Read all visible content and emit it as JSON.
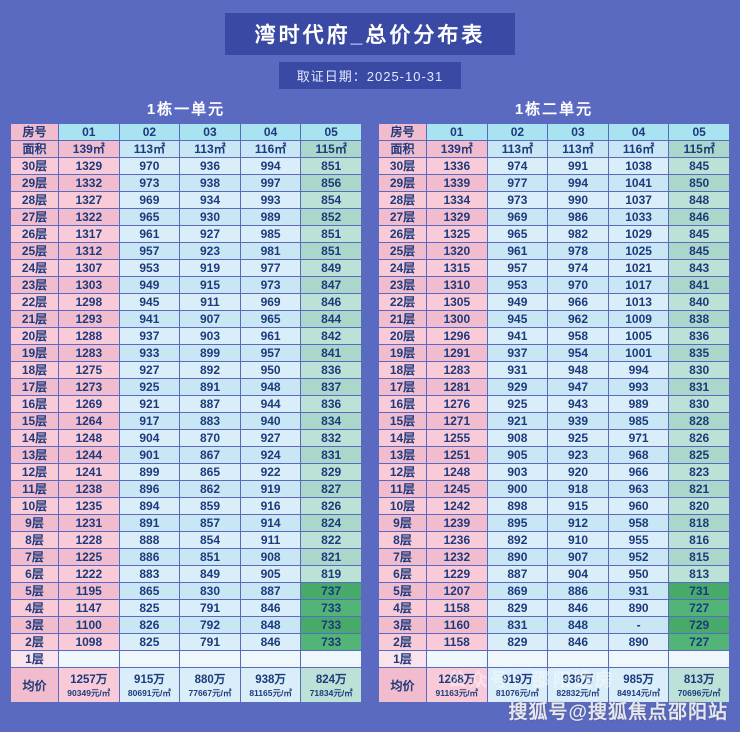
{
  "page": {
    "title": "湾时代府_总价分布表",
    "date_label": "取证日期：2025-10-31",
    "watermark": "搜狐号@搜狐焦点邵阳站",
    "watermark_faint": "公众号：邵阳选房",
    "colors": {
      "background": "#5b6ac1",
      "banner": "#3a49a4",
      "header_cell": "#a9e2f1",
      "pink_light": "#f9cbd8",
      "pink_dark": "#f1bccd",
      "blue_light": "#d9eef9",
      "blue_dark": "#c8e6f4",
      "teal_light": "#bce1d6",
      "teal_dark": "#abd7ca",
      "green_light": "#52b476",
      "green_dark": "#47aa6b",
      "pale": "#eef7fb",
      "pale_pink": "#fbe3ec",
      "text": "#1d3a7c"
    }
  },
  "chart_data": [
    {
      "type": "table",
      "title": "1栋一单元",
      "corner_label": "房号",
      "area_label": "面积",
      "room_numbers": [
        "01",
        "02",
        "03",
        "04",
        "05"
      ],
      "areas": [
        "139㎡",
        "113㎡",
        "113㎡",
        "116㎡",
        "115㎡"
      ],
      "floors": [
        "30层",
        "29层",
        "28层",
        "27层",
        "26层",
        "25层",
        "24层",
        "23层",
        "22层",
        "21层",
        "20层",
        "19层",
        "18层",
        "17层",
        "16层",
        "15层",
        "14层",
        "13层",
        "12层",
        "11层",
        "10层",
        "9层",
        "8层",
        "7层",
        "6层",
        "5层",
        "4层",
        "3层",
        "2层",
        "1层"
      ],
      "green_floors": [
        "5层",
        "4层",
        "3层",
        "2层"
      ],
      "prices": [
        [
          "1329",
          "970",
          "936",
          "994",
          "851"
        ],
        [
          "1332",
          "973",
          "938",
          "997",
          "856"
        ],
        [
          "1327",
          "969",
          "934",
          "993",
          "854"
        ],
        [
          "1322",
          "965",
          "930",
          "989",
          "852"
        ],
        [
          "1317",
          "961",
          "927",
          "985",
          "851"
        ],
        [
          "1312",
          "957",
          "923",
          "981",
          "851"
        ],
        [
          "1307",
          "953",
          "919",
          "977",
          "849"
        ],
        [
          "1303",
          "949",
          "915",
          "973",
          "847"
        ],
        [
          "1298",
          "945",
          "911",
          "969",
          "846"
        ],
        [
          "1293",
          "941",
          "907",
          "965",
          "844"
        ],
        [
          "1288",
          "937",
          "903",
          "961",
          "842"
        ],
        [
          "1283",
          "933",
          "899",
          "957",
          "841"
        ],
        [
          "1275",
          "927",
          "892",
          "950",
          "836"
        ],
        [
          "1273",
          "925",
          "891",
          "948",
          "837"
        ],
        [
          "1269",
          "921",
          "887",
          "944",
          "836"
        ],
        [
          "1264",
          "917",
          "883",
          "940",
          "834"
        ],
        [
          "1248",
          "904",
          "870",
          "927",
          "832"
        ],
        [
          "1244",
          "901",
          "867",
          "924",
          "831"
        ],
        [
          "1241",
          "899",
          "865",
          "922",
          "829"
        ],
        [
          "1238",
          "896",
          "862",
          "919",
          "827"
        ],
        [
          "1235",
          "894",
          "859",
          "916",
          "826"
        ],
        [
          "1231",
          "891",
          "857",
          "914",
          "824"
        ],
        [
          "1228",
          "888",
          "854",
          "911",
          "822"
        ],
        [
          "1225",
          "886",
          "851",
          "908",
          "821"
        ],
        [
          "1222",
          "883",
          "849",
          "905",
          "819"
        ],
        [
          "1195",
          "865",
          "830",
          "887",
          "737"
        ],
        [
          "1147",
          "825",
          "791",
          "846",
          "733"
        ],
        [
          "1100",
          "826",
          "792",
          "848",
          "733"
        ],
        [
          "1098",
          "825",
          "791",
          "846",
          "733"
        ],
        [
          "",
          "",
          "",
          "",
          ""
        ]
      ],
      "avg_label": "均价",
      "avg_total": [
        "1257万",
        "915万",
        "880万",
        "938万",
        "824万"
      ],
      "avg_unit": [
        "90349元/㎡",
        "80691元/㎡",
        "77667元/㎡",
        "81165元/㎡",
        "71834元/㎡"
      ]
    },
    {
      "type": "table",
      "title": "1栋二单元",
      "corner_label": "房号",
      "area_label": "面积",
      "room_numbers": [
        "01",
        "02",
        "03",
        "04",
        "05"
      ],
      "areas": [
        "139㎡",
        "113㎡",
        "113㎡",
        "116㎡",
        "115㎡"
      ],
      "floors": [
        "30层",
        "29层",
        "28层",
        "27层",
        "26层",
        "25层",
        "24层",
        "23层",
        "22层",
        "21层",
        "20层",
        "19层",
        "18层",
        "17层",
        "16层",
        "15层",
        "14层",
        "13层",
        "12层",
        "11层",
        "10层",
        "9层",
        "8层",
        "7层",
        "6层",
        "5层",
        "4层",
        "3层",
        "2层",
        "1层"
      ],
      "green_floors": [
        "5层",
        "4层",
        "3层",
        "2层"
      ],
      "prices": [
        [
          "1336",
          "974",
          "991",
          "1038",
          "845"
        ],
        [
          "1339",
          "977",
          "994",
          "1041",
          "850"
        ],
        [
          "1334",
          "973",
          "990",
          "1037",
          "848"
        ],
        [
          "1329",
          "969",
          "986",
          "1033",
          "846"
        ],
        [
          "1325",
          "965",
          "982",
          "1029",
          "845"
        ],
        [
          "1320",
          "961",
          "978",
          "1025",
          "845"
        ],
        [
          "1315",
          "957",
          "974",
          "1021",
          "843"
        ],
        [
          "1310",
          "953",
          "970",
          "1017",
          "841"
        ],
        [
          "1305",
          "949",
          "966",
          "1013",
          "840"
        ],
        [
          "1300",
          "945",
          "962",
          "1009",
          "838"
        ],
        [
          "1296",
          "941",
          "958",
          "1005",
          "836"
        ],
        [
          "1291",
          "937",
          "954",
          "1001",
          "835"
        ],
        [
          "1283",
          "931",
          "948",
          "994",
          "830"
        ],
        [
          "1281",
          "929",
          "947",
          "993",
          "831"
        ],
        [
          "1276",
          "925",
          "943",
          "989",
          "830"
        ],
        [
          "1271",
          "921",
          "939",
          "985",
          "828"
        ],
        [
          "1255",
          "908",
          "925",
          "971",
          "826"
        ],
        [
          "1251",
          "905",
          "923",
          "968",
          "825"
        ],
        [
          "1248",
          "903",
          "920",
          "966",
          "823"
        ],
        [
          "1245",
          "900",
          "918",
          "963",
          "821"
        ],
        [
          "1242",
          "898",
          "915",
          "960",
          "820"
        ],
        [
          "1239",
          "895",
          "912",
          "958",
          "818"
        ],
        [
          "1236",
          "892",
          "910",
          "955",
          "816"
        ],
        [
          "1232",
          "890",
          "907",
          "952",
          "815"
        ],
        [
          "1229",
          "887",
          "904",
          "950",
          "813"
        ],
        [
          "1207",
          "869",
          "886",
          "931",
          "731"
        ],
        [
          "1158",
          "829",
          "846",
          "890",
          "727"
        ],
        [
          "1160",
          "831",
          "848",
          "-",
          "729"
        ],
        [
          "1158",
          "829",
          "846",
          "890",
          "727"
        ],
        [
          "",
          "",
          "",
          "",
          ""
        ]
      ],
      "avg_label": "均价",
      "avg_total": [
        "1268万",
        "919万",
        "936万",
        "985万",
        "813万"
      ],
      "avg_unit": [
        "91163元/㎡",
        "81076元/㎡",
        "82832元/㎡",
        "84914元/㎡",
        "70696元/㎡"
      ]
    }
  ]
}
